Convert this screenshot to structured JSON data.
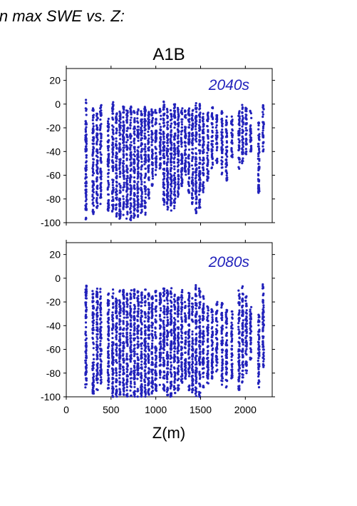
{
  "header": {
    "text": "in max SWE vs. Z:"
  },
  "chart_data": [
    {
      "type": "scatter",
      "title": "A1B",
      "annotation": "2040s",
      "xlabel": "Z(m)",
      "ylabel": "",
      "xlim": [
        0,
        2300
      ],
      "ylim": [
        -100,
        30
      ],
      "yticks": [
        20,
        0,
        -20,
        -40,
        -60,
        -80,
        -100
      ],
      "xticks": [
        0,
        500,
        1000,
        1500,
        2000
      ],
      "grid": false,
      "marker_color": "#2222bb",
      "columns": [
        {
          "z": 220,
          "ymin": -98,
          "ymax": 4
        },
        {
          "z": 300,
          "ymin": -95,
          "ymax": -3
        },
        {
          "z": 345,
          "ymin": -88,
          "ymax": -5
        },
        {
          "z": 385,
          "ymin": -85,
          "ymax": 0
        },
        {
          "z": 470,
          "ymin": -90,
          "ymax": -10
        },
        {
          "z": 520,
          "ymin": -92,
          "ymax": 2
        },
        {
          "z": 560,
          "ymin": -95,
          "ymax": -5
        },
        {
          "z": 600,
          "ymin": -98,
          "ymax": -3
        },
        {
          "z": 640,
          "ymin": -95,
          "ymax": -2
        },
        {
          "z": 680,
          "ymin": -97,
          "ymax": -4
        },
        {
          "z": 720,
          "ymin": -99,
          "ymax": 0
        },
        {
          "z": 760,
          "ymin": -96,
          "ymax": -5
        },
        {
          "z": 800,
          "ymin": -95,
          "ymax": -3
        },
        {
          "z": 840,
          "ymin": -92,
          "ymax": -5
        },
        {
          "z": 880,
          "ymin": -94,
          "ymax": -2
        },
        {
          "z": 920,
          "ymin": -82,
          "ymax": -5
        },
        {
          "z": 960,
          "ymin": -70,
          "ymax": -4
        },
        {
          "z": 1000,
          "ymin": -60,
          "ymax": -5
        },
        {
          "z": 1050,
          "ymin": -55,
          "ymax": -3
        },
        {
          "z": 1090,
          "ymin": -85,
          "ymax": 4
        },
        {
          "z": 1130,
          "ymin": -92,
          "ymax": -2
        },
        {
          "z": 1170,
          "ymin": -90,
          "ymax": -5
        },
        {
          "z": 1210,
          "ymin": -88,
          "ymax": 0
        },
        {
          "z": 1250,
          "ymin": -80,
          "ymax": -3
        },
        {
          "z": 1290,
          "ymin": -70,
          "ymax": -2
        },
        {
          "z": 1330,
          "ymin": -60,
          "ymax": -5
        },
        {
          "z": 1370,
          "ymin": -75,
          "ymax": -3
        },
        {
          "z": 1410,
          "ymin": -85,
          "ymax": -5
        },
        {
          "z": 1450,
          "ymin": -92,
          "ymax": 1
        },
        {
          "z": 1490,
          "ymin": -90,
          "ymax": 2
        },
        {
          "z": 1530,
          "ymin": -75,
          "ymax": -8
        },
        {
          "z": 1580,
          "ymin": -65,
          "ymax": -5
        },
        {
          "z": 1630,
          "ymin": -55,
          "ymax": -2
        },
        {
          "z": 1680,
          "ymin": -50,
          "ymax": -8
        },
        {
          "z": 1740,
          "ymin": -60,
          "ymax": -5
        },
        {
          "z": 1790,
          "ymin": -65,
          "ymax": -10
        },
        {
          "z": 1850,
          "ymin": -45,
          "ymax": -8
        },
        {
          "z": 1930,
          "ymin": -55,
          "ymax": -5
        },
        {
          "z": 1970,
          "ymin": -50,
          "ymax": 0
        },
        {
          "z": 2010,
          "ymin": -45,
          "ymax": -3
        },
        {
          "z": 2060,
          "ymin": -40,
          "ymax": -5
        },
        {
          "z": 2150,
          "ymin": -75,
          "ymax": -15
        },
        {
          "z": 2200,
          "ymin": -40,
          "ymax": 1
        }
      ]
    },
    {
      "type": "scatter",
      "title": "",
      "annotation": "2080s",
      "xlabel": "Z(m)",
      "ylabel": "",
      "xlim": [
        0,
        2300
      ],
      "ylim": [
        -100,
        30
      ],
      "yticks": [
        20,
        0,
        -20,
        -40,
        -60,
        -80,
        -100
      ],
      "xticks": [
        0,
        500,
        1000,
        1500,
        2000
      ],
      "grid": false,
      "marker_color": "#2222bb",
      "columns": [
        {
          "z": 220,
          "ymin": -100,
          "ymax": -4
        },
        {
          "z": 300,
          "ymin": -98,
          "ymax": -10
        },
        {
          "z": 345,
          "ymin": -95,
          "ymax": -8
        },
        {
          "z": 385,
          "ymin": -90,
          "ymax": -8
        },
        {
          "z": 470,
          "ymin": -95,
          "ymax": -12
        },
        {
          "z": 520,
          "ymin": -100,
          "ymax": -8
        },
        {
          "z": 560,
          "ymin": -100,
          "ymax": -15
        },
        {
          "z": 600,
          "ymin": -100,
          "ymax": -10
        },
        {
          "z": 640,
          "ymin": -100,
          "ymax": -8
        },
        {
          "z": 680,
          "ymin": -100,
          "ymax": -12
        },
        {
          "z": 720,
          "ymin": -100,
          "ymax": -10
        },
        {
          "z": 760,
          "ymin": -100,
          "ymax": -9
        },
        {
          "z": 800,
          "ymin": -100,
          "ymax": -10
        },
        {
          "z": 840,
          "ymin": -100,
          "ymax": -12
        },
        {
          "z": 880,
          "ymin": -100,
          "ymax": -8
        },
        {
          "z": 920,
          "ymin": -100,
          "ymax": -12
        },
        {
          "z": 960,
          "ymin": -98,
          "ymax": -15
        },
        {
          "z": 1000,
          "ymin": -95,
          "ymax": -10
        },
        {
          "z": 1050,
          "ymin": -90,
          "ymax": -12
        },
        {
          "z": 1090,
          "ymin": -95,
          "ymax": -6
        },
        {
          "z": 1130,
          "ymin": -100,
          "ymax": -10
        },
        {
          "z": 1170,
          "ymin": -100,
          "ymax": -8
        },
        {
          "z": 1210,
          "ymin": -98,
          "ymax": -12
        },
        {
          "z": 1250,
          "ymin": -95,
          "ymax": -15
        },
        {
          "z": 1290,
          "ymin": -90,
          "ymax": -10
        },
        {
          "z": 1330,
          "ymin": -85,
          "ymax": -20
        },
        {
          "z": 1370,
          "ymin": -95,
          "ymax": -12
        },
        {
          "z": 1410,
          "ymin": -98,
          "ymax": -15
        },
        {
          "z": 1450,
          "ymin": -100,
          "ymax": -5
        },
        {
          "z": 1490,
          "ymin": -100,
          "ymax": -8
        },
        {
          "z": 1530,
          "ymin": -95,
          "ymax": -15
        },
        {
          "z": 1580,
          "ymin": -90,
          "ymax": -20
        },
        {
          "z": 1630,
          "ymin": -85,
          "ymax": -25
        },
        {
          "z": 1680,
          "ymin": -80,
          "ymax": -20
        },
        {
          "z": 1740,
          "ymin": -90,
          "ymax": -20
        },
        {
          "z": 1790,
          "ymin": -95,
          "ymax": -25
        },
        {
          "z": 1850,
          "ymin": -85,
          "ymax": -25
        },
        {
          "z": 1930,
          "ymin": -95,
          "ymax": -10
        },
        {
          "z": 1970,
          "ymin": -88,
          "ymax": -5
        },
        {
          "z": 2010,
          "ymin": -80,
          "ymax": -15
        },
        {
          "z": 2060,
          "ymin": -70,
          "ymax": -20
        },
        {
          "z": 2150,
          "ymin": -95,
          "ymax": -30
        },
        {
          "z": 2200,
          "ymin": -75,
          "ymax": -5
        }
      ]
    }
  ]
}
